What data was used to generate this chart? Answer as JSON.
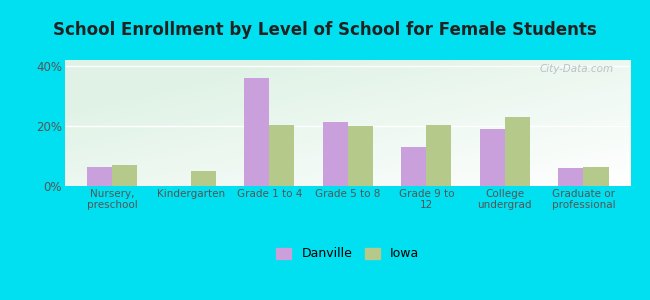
{
  "title": "School Enrollment by Level of School for Female Students",
  "categories": [
    "Nursery,\npreschool",
    "Kindergarten",
    "Grade 1 to 4",
    "Grade 5 to 8",
    "Grade 9 to\n12",
    "College\nundergrad",
    "Graduate or\nprofessional"
  ],
  "danville": [
    6.5,
    0,
    36,
    21.5,
    13,
    19,
    6
  ],
  "iowa": [
    7,
    5,
    20.5,
    20,
    20.5,
    23,
    6.5
  ],
  "danville_color": "#c9a0dc",
  "iowa_color": "#b5c98a",
  "title_fontsize": 12,
  "background_outer": "#00e0f0",
  "ylim": [
    0,
    42
  ],
  "yticks": [
    0,
    20,
    40
  ],
  "ytick_labels": [
    "0%",
    "20%",
    "40%"
  ],
  "bar_width": 0.32,
  "legend_labels": [
    "Danville",
    "Iowa"
  ],
  "watermark": "City-Data.com"
}
